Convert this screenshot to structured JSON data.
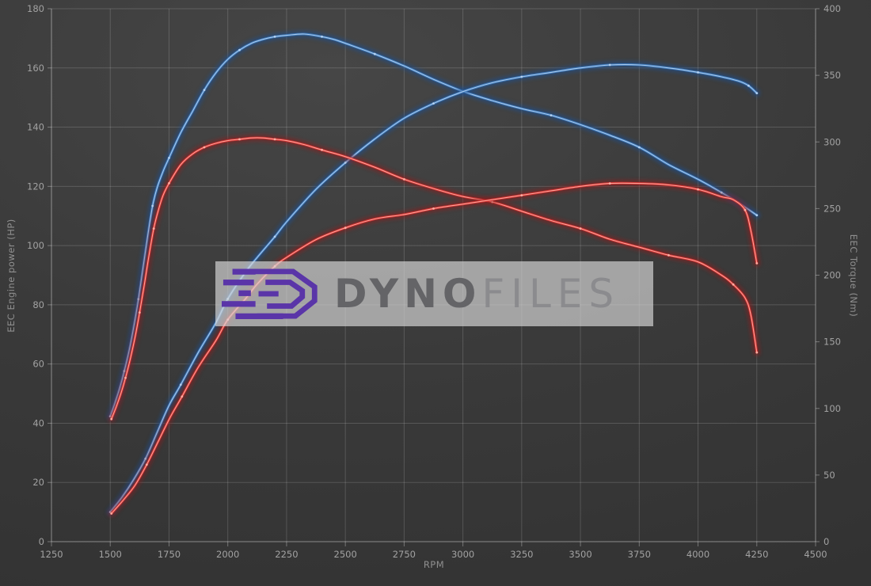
{
  "watermark": {
    "brand_bold": "Dyno",
    "brand_light": "Files"
  },
  "colors": {
    "background": "#3a3a3a",
    "grid": "#5c5c5c",
    "axis_text": "#a2a2a2",
    "curve_blue": "#3e7cc0",
    "curve_red": "#d63030",
    "logo_purple": "#5a35a8",
    "watermark_box": "#a0a0a0"
  },
  "chart_data": {
    "type": "line",
    "title": "",
    "xlabel": "RPM",
    "ylabel_left": "EEC Engine power (HP)",
    "ylabel_right": "EEC Torque (Nm)",
    "xlim": [
      1250,
      4500
    ],
    "ylim_left": [
      0,
      180
    ],
    "ylim_right": [
      0,
      400
    ],
    "x_ticks": [
      1250,
      1500,
      1750,
      2000,
      2250,
      2500,
      2750,
      3000,
      3250,
      3500,
      3750,
      4000,
      4250,
      4500
    ],
    "y_left_ticks": [
      0,
      20,
      40,
      60,
      80,
      100,
      120,
      140,
      160,
      180
    ],
    "y_right_ticks": [
      0,
      50,
      100,
      150,
      200,
      250,
      300,
      350,
      400
    ],
    "grid": true,
    "legend": false,
    "series": [
      {
        "name": "torque-blue",
        "axis": "right",
        "unit": "Nm",
        "colors": {
          "glow": "#1c4f92",
          "stroke": "#3e7cc0",
          "core": "#b5d2f0"
        },
        "points": [
          [
            1500,
            94
          ],
          [
            1520,
            104
          ],
          [
            1540,
            115
          ],
          [
            1560,
            128
          ],
          [
            1580,
            143
          ],
          [
            1600,
            161
          ],
          [
            1620,
            182
          ],
          [
            1640,
            206
          ],
          [
            1660,
            230
          ],
          [
            1680,
            252
          ],
          [
            1700,
            266
          ],
          [
            1725,
            278
          ],
          [
            1750,
            288
          ],
          [
            1800,
            307
          ],
          [
            1850,
            323
          ],
          [
            1900,
            339
          ],
          [
            1950,
            352
          ],
          [
            2000,
            362
          ],
          [
            2050,
            369
          ],
          [
            2100,
            374
          ],
          [
            2150,
            377
          ],
          [
            2200,
            379
          ],
          [
            2250,
            380
          ],
          [
            2325,
            381
          ],
          [
            2400,
            379
          ],
          [
            2450,
            377
          ],
          [
            2500,
            374
          ],
          [
            2625,
            366
          ],
          [
            2750,
            357
          ],
          [
            2875,
            347
          ],
          [
            3000,
            338
          ],
          [
            3125,
            331
          ],
          [
            3250,
            325
          ],
          [
            3375,
            320
          ],
          [
            3500,
            313
          ],
          [
            3625,
            305
          ],
          [
            3750,
            296
          ],
          [
            3875,
            283
          ],
          [
            4000,
            272
          ],
          [
            4100,
            262
          ],
          [
            4175,
            254
          ],
          [
            4250,
            245
          ]
        ]
      },
      {
        "name": "power-blue",
        "axis": "left",
        "unit": "HP",
        "colors": {
          "glow": "#1c4f92",
          "stroke": "#3e7cc0",
          "core": "#b5d2f0"
        },
        "points": [
          [
            1500,
            10
          ],
          [
            1550,
            15
          ],
          [
            1600,
            21
          ],
          [
            1650,
            28
          ],
          [
            1700,
            37
          ],
          [
            1750,
            46
          ],
          [
            1800,
            53
          ],
          [
            1875,
            64
          ],
          [
            1950,
            74
          ],
          [
            2000,
            82
          ],
          [
            2075,
            91
          ],
          [
            2125,
            96
          ],
          [
            2200,
            103
          ],
          [
            2250,
            108
          ],
          [
            2375,
            119
          ],
          [
            2500,
            128
          ],
          [
            2625,
            136
          ],
          [
            2750,
            143
          ],
          [
            2875,
            148
          ],
          [
            3000,
            152
          ],
          [
            3125,
            155
          ],
          [
            3250,
            157
          ],
          [
            3375,
            158.5
          ],
          [
            3500,
            160
          ],
          [
            3625,
            161
          ],
          [
            3750,
            161
          ],
          [
            3875,
            160
          ],
          [
            4000,
            158.5
          ],
          [
            4100,
            157
          ],
          [
            4175,
            155.5
          ],
          [
            4215,
            154
          ],
          [
            4250,
            151.5
          ]
        ]
      },
      {
        "name": "torque-red",
        "axis": "right",
        "unit": "Nm",
        "colors": {
          "glow": "#8e1f1f",
          "stroke": "#d63030",
          "core": "#ffb0a4"
        },
        "points": [
          [
            1505,
            92
          ],
          [
            1525,
            101
          ],
          [
            1545,
            111
          ],
          [
            1565,
            123
          ],
          [
            1585,
            137
          ],
          [
            1605,
            153
          ],
          [
            1625,
            172
          ],
          [
            1645,
            193
          ],
          [
            1665,
            215
          ],
          [
            1685,
            235
          ],
          [
            1705,
            249
          ],
          [
            1725,
            260
          ],
          [
            1750,
            269
          ],
          [
            1800,
            283
          ],
          [
            1850,
            291
          ],
          [
            1900,
            296
          ],
          [
            1950,
            299
          ],
          [
            2000,
            301
          ],
          [
            2050,
            302
          ],
          [
            2100,
            303
          ],
          [
            2150,
            303
          ],
          [
            2200,
            302
          ],
          [
            2250,
            301
          ],
          [
            2325,
            298
          ],
          [
            2400,
            294
          ],
          [
            2500,
            289
          ],
          [
            2625,
            281
          ],
          [
            2750,
            272
          ],
          [
            2875,
            265
          ],
          [
            3000,
            259
          ],
          [
            3125,
            255
          ],
          [
            3250,
            248
          ],
          [
            3375,
            241
          ],
          [
            3500,
            235
          ],
          [
            3625,
            227
          ],
          [
            3750,
            221
          ],
          [
            3875,
            215
          ],
          [
            4000,
            210
          ],
          [
            4100,
            200
          ],
          [
            4150,
            193
          ],
          [
            4200,
            183
          ],
          [
            4225,
            170
          ],
          [
            4250,
            142
          ]
        ]
      },
      {
        "name": "power-red",
        "axis": "left",
        "unit": "HP",
        "colors": {
          "glow": "#8e1f1f",
          "stroke": "#d63030",
          "core": "#ffb0a4"
        },
        "points": [
          [
            1505,
            9.5
          ],
          [
            1555,
            14
          ],
          [
            1605,
            19
          ],
          [
            1655,
            26
          ],
          [
            1705,
            34
          ],
          [
            1755,
            42
          ],
          [
            1805,
            49
          ],
          [
            1875,
            59
          ],
          [
            1950,
            68
          ],
          [
            2000,
            75
          ],
          [
            2075,
            82
          ],
          [
            2125,
            87
          ],
          [
            2200,
            93
          ],
          [
            2250,
            96
          ],
          [
            2375,
            102
          ],
          [
            2500,
            106
          ],
          [
            2625,
            109
          ],
          [
            2750,
            110.5
          ],
          [
            2875,
            112.5
          ],
          [
            3000,
            114
          ],
          [
            3125,
            115.5
          ],
          [
            3250,
            117
          ],
          [
            3375,
            118.5
          ],
          [
            3500,
            120
          ],
          [
            3625,
            121
          ],
          [
            3750,
            121
          ],
          [
            3875,
            120.5
          ],
          [
            4000,
            119
          ],
          [
            4100,
            116.5
          ],
          [
            4150,
            115.5
          ],
          [
            4200,
            112
          ],
          [
            4225,
            105
          ],
          [
            4250,
            94
          ]
        ]
      }
    ]
  }
}
